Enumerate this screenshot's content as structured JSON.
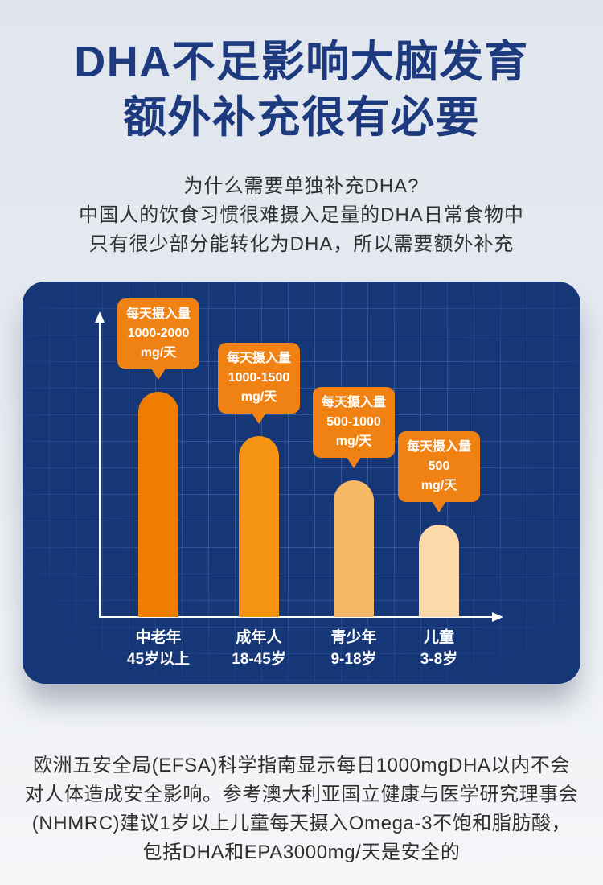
{
  "theme": {
    "title_color": "#1c3a7d",
    "text_color": "#303030",
    "chart_background": "#153677",
    "callout_color": "#ef8213",
    "axis_color": "#ffffff"
  },
  "header": {
    "title_lines": [
      "DHA不足影响大脑发育",
      "额外补充很有必要"
    ]
  },
  "intro": {
    "lines": [
      "为什么需要单独补充DHA?",
      "中国人的饮食习惯很难摄入足量的DHA日常食物中",
      "只有很少部分能转化为DHA，所以需要额外补充"
    ]
  },
  "chart_data": {
    "type": "bar",
    "categories": [
      "中老年",
      "成年人",
      "青少年",
      "儿童"
    ],
    "category_sublabels": [
      "45岁以上",
      "18-45岁",
      "9-18岁",
      "3-8岁"
    ],
    "values": [
      2000,
      1500,
      1000,
      500
    ],
    "data_labels": [
      {
        "title": "每天摄入量",
        "value": "1000-2000",
        "unit": "mg/天"
      },
      {
        "title": "每天摄入量",
        "value": "1000-1500",
        "unit": "mg/天"
      },
      {
        "title": "每天摄入量",
        "value": "500-1000",
        "unit": "mg/天"
      },
      {
        "title": "每天摄入量",
        "value": "500",
        "unit": "mg/天"
      }
    ],
    "colors": [
      "#ee7d00",
      "#f59313",
      "#f8b966",
      "#fdd9aa"
    ],
    "grid": true
  },
  "footnote": {
    "lines": [
      "欧洲五安全局(EFSA)科学指南显示每日1000mgDHA以内不会",
      "对人体造成安全影响。参考澳大利亚国立健康与医学研究理事会",
      "(NHMRC)建议1岁以上儿童每天摄入Omega-3不饱和脂肪酸，",
      "包括DHA和EPA3000mg/天是安全的"
    ]
  }
}
